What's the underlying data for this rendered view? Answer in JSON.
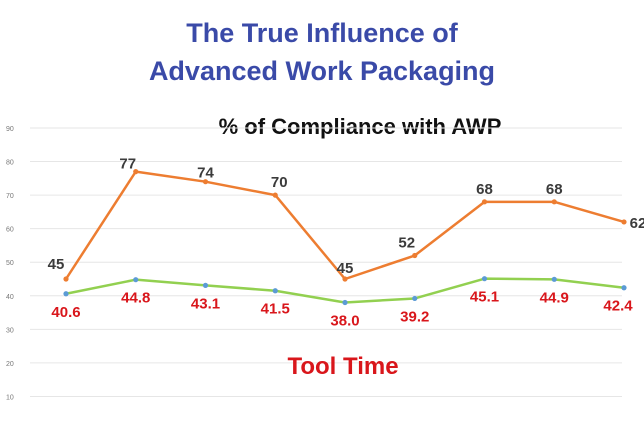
{
  "header": {
    "title_line1": "The True Influence of",
    "title_line2": "Advanced Work Packaging"
  },
  "chart_data": {
    "type": "line",
    "title": "% of Compliance with AWP",
    "xlabel": "",
    "ylabel": "",
    "ylim": [
      0,
      90
    ],
    "yticks": [
      "0",
      "10",
      "20",
      "30",
      "40",
      "50",
      "60",
      "70",
      "80",
      "90"
    ],
    "grid": true,
    "legend": "none",
    "x": [
      1,
      2,
      3,
      4,
      5,
      6,
      7,
      8,
      9
    ],
    "series": [
      {
        "color": "#ED7D31",
        "values": [
          45,
          77,
          74,
          70,
          45,
          52,
          68,
          68,
          62
        ],
        "labels": [
          "45",
          "77",
          "74",
          "70",
          "45",
          "52",
          "68",
          "68",
          "62"
        ]
      },
      {
        "color": "#92D050",
        "marker_color": "#5B9BD5",
        "values": [
          40.6,
          44.8,
          43.1,
          41.5,
          38.0,
          39.2,
          45.1,
          44.9,
          42.4
        ],
        "labels": [
          "40.6",
          "44.8",
          "43.1",
          "41.5",
          "38.0",
          "39.2",
          "45.1",
          "44.9",
          "42.4"
        ]
      }
    ],
    "annotations": [
      "Tool Time"
    ]
  }
}
